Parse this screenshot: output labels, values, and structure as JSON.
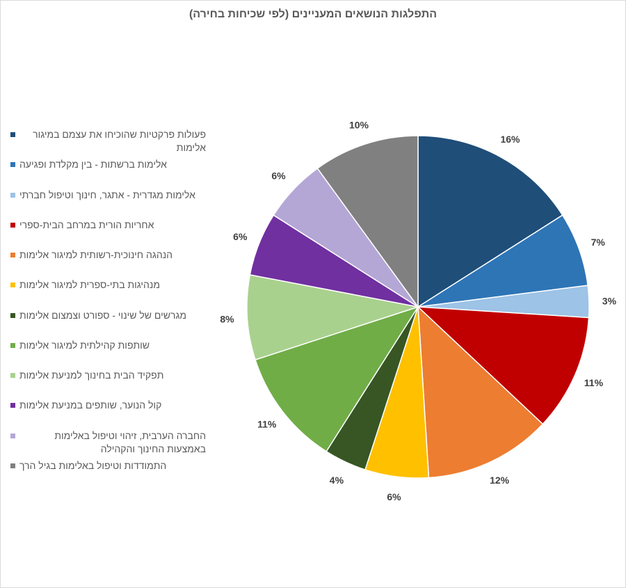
{
  "chart_data": {
    "type": "pie",
    "title": "התפלגות הנושאים המעניינים (לפי שכיחות בחירה)",
    "legend_position": "left",
    "categories": [
      "פעולות פרקטיות שהוכיחו את עצמם במיגור אלימות",
      "אלימות ברשתות - בין מקלדת ופגיעה",
      "אלימות מגדרית - אתגר, חינוך וטיפול חברתי",
      "אחריות הורית במרחב הבית-ספרי",
      "הנהגה חינוכית-רשותית למיגור אלימות",
      "מנהיגות בתי-ספרית למיגור אלימות",
      "מגרשים של שינוי - ספורט וצמצום אלימות",
      "שותפות קהילתית למיגור אלימות",
      "תפקיד הבית בחינוך למניעת אלימות",
      "קול הנוער, שותפים במניעת אלימות",
      "החברה הערבית, זיהוי וטיפול באלימות באמצעות החינוך והקהילה",
      "התמודדות וטיפול באלימות בגיל הרך"
    ],
    "values": [
      16,
      7,
      3,
      11,
      12,
      6,
      4,
      11,
      8,
      6,
      6,
      10
    ],
    "labels": [
      "16%",
      "7%",
      "3%",
      "11%",
      "12%",
      "6%",
      "4%",
      "11%",
      "8%",
      "6%",
      "6%",
      "10%"
    ],
    "colors": [
      "#1F4E79",
      "#2E75B6",
      "#9DC3E6",
      "#C00000",
      "#ED7D31",
      "#FFC000",
      "#375623",
      "#70AD47",
      "#A9D18E",
      "#7030A0",
      "#B4A7D6",
      "#808080"
    ]
  }
}
